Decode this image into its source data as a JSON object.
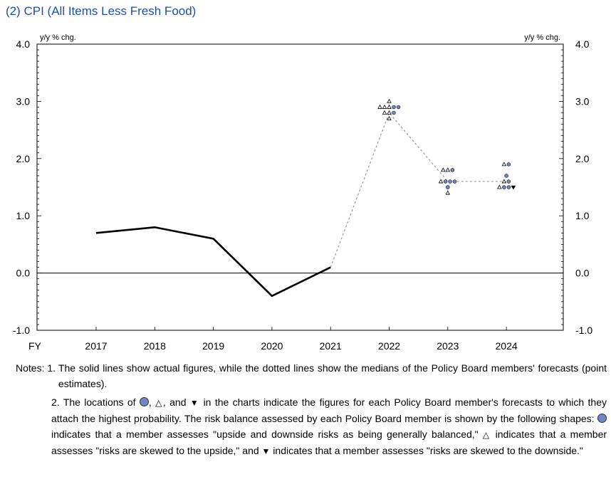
{
  "title": "(2) CPI (All Items Less Fresh Food)",
  "chart_data": {
    "type": "line",
    "x_axis_label": "FY",
    "categories": [
      "2017",
      "2018",
      "2019",
      "2020",
      "2021",
      "2022",
      "2023",
      "2024"
    ],
    "ylim": [
      -1.0,
      4.0
    ],
    "yticks": [
      "4.0",
      "3.0",
      "2.0",
      "1.0",
      "0.0",
      "-1.0"
    ],
    "y_unit_left": "y/y % chg.",
    "y_unit_right": "y/y % chg.",
    "actual_series": {
      "style": "solid",
      "values": [
        0.7,
        0.8,
        0.6,
        -0.4,
        0.1,
        null,
        null,
        null
      ]
    },
    "median_series": {
      "style": "dotted",
      "values": [
        null,
        null,
        null,
        null,
        0.1,
        2.8,
        1.6,
        1.6
      ]
    },
    "forecast_points": [
      {
        "category": "2022",
        "value": 3.0,
        "shape": "triangle-up"
      },
      {
        "category": "2022",
        "value": 2.9,
        "shape": "triangle-up"
      },
      {
        "category": "2022",
        "value": 2.9,
        "shape": "triangle-up"
      },
      {
        "category": "2022",
        "value": 2.9,
        "shape": "triangle-up"
      },
      {
        "category": "2022",
        "value": 2.9,
        "shape": "circle"
      },
      {
        "category": "2022",
        "value": 2.9,
        "shape": "circle"
      },
      {
        "category": "2022",
        "value": 2.8,
        "shape": "triangle-up"
      },
      {
        "category": "2022",
        "value": 2.8,
        "shape": "triangle-up"
      },
      {
        "category": "2022",
        "value": 2.8,
        "shape": "circle"
      },
      {
        "category": "2022",
        "value": 2.7,
        "shape": "triangle-up"
      },
      {
        "category": "2023",
        "value": 1.8,
        "shape": "triangle-up"
      },
      {
        "category": "2023",
        "value": 1.8,
        "shape": "triangle-up"
      },
      {
        "category": "2023",
        "value": 1.8,
        "shape": "circle"
      },
      {
        "category": "2023",
        "value": 1.6,
        "shape": "triangle-up"
      },
      {
        "category": "2023",
        "value": 1.6,
        "shape": "circle"
      },
      {
        "category": "2023",
        "value": 1.6,
        "shape": "circle"
      },
      {
        "category": "2023",
        "value": 1.6,
        "shape": "circle"
      },
      {
        "category": "2023",
        "value": 1.5,
        "shape": "circle"
      },
      {
        "category": "2023",
        "value": 1.4,
        "shape": "triangle-up"
      },
      {
        "category": "2024",
        "value": 1.9,
        "shape": "triangle-up"
      },
      {
        "category": "2024",
        "value": 1.9,
        "shape": "circle"
      },
      {
        "category": "2024",
        "value": 1.7,
        "shape": "circle"
      },
      {
        "category": "2024",
        "value": 1.6,
        "shape": "triangle-up"
      },
      {
        "category": "2024",
        "value": 1.6,
        "shape": "circle"
      },
      {
        "category": "2024",
        "value": 1.5,
        "shape": "triangle-up"
      },
      {
        "category": "2024",
        "value": 1.5,
        "shape": "circle"
      },
      {
        "category": "2024",
        "value": 1.5,
        "shape": "circle"
      },
      {
        "category": "2024",
        "value": 1.5,
        "shape": "triangle-down"
      }
    ],
    "colors": {
      "line": "#000000",
      "median": "#999999",
      "circle_fill": "#6f86c9",
      "title": "#1f4fa8"
    }
  },
  "notes": {
    "n1_lead": "Notes: 1. ",
    "n1_text": "The solid lines show actual figures, while the dotted lines show the medians of the Policy Board members' forecasts (point estimates).",
    "n2_a": "2. The locations of ",
    "n2_b": ", ",
    "n2_c": ", and ",
    "n2_d": " in the charts indicate the figures for each Policy Board member's forecasts to which they attach the highest probability. The risk balance assessed by each Policy Board member is shown by the following shapes: ",
    "n2_e": " indicates that a member assesses \"upside and downside risks as being generally balanced,\" ",
    "n2_f": " indicates that a member assesses \"risks are skewed to the upside,\" and ",
    "n2_g": " indicates that a member assesses \"risks are skewed to the downside.\"",
    "tri_up_glyph": "△",
    "tri_dn_glyph": "▼"
  }
}
